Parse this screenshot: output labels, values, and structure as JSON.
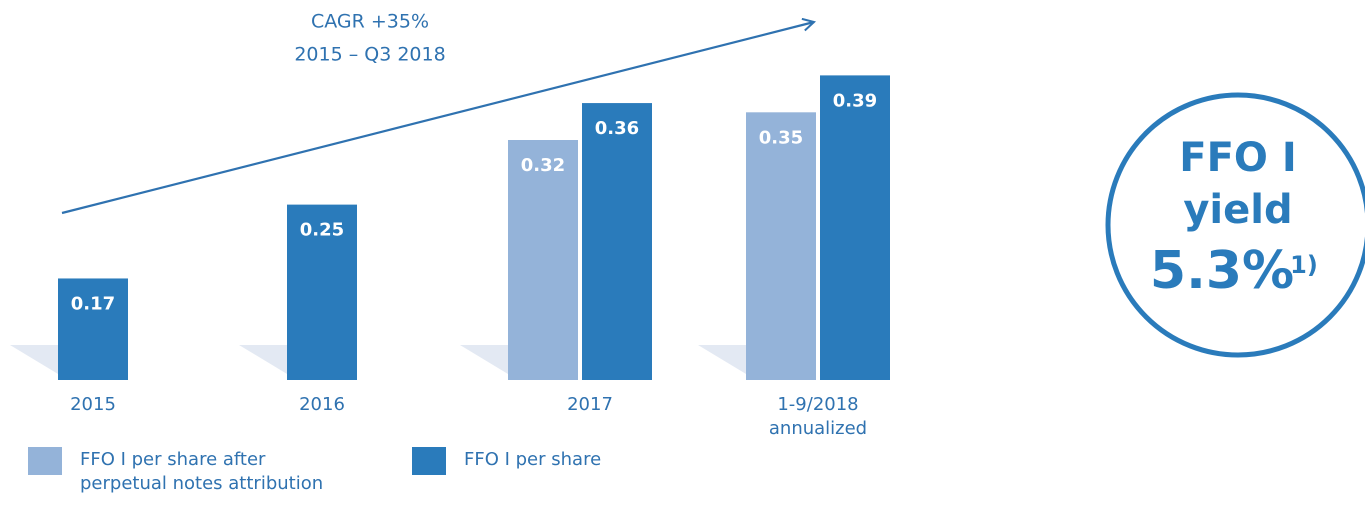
{
  "chart_data": {
    "type": "bar",
    "annotation": [
      "CAGR +35%",
      "2015 – Q3 2018"
    ],
    "categories": [
      "2015",
      "2016",
      "2017",
      "1-9/2018 annualized"
    ],
    "series": [
      {
        "name": "FFO I per share after perpetual notes attribution",
        "color": "#94b3d9",
        "values": [
          null,
          null,
          0.32,
          0.35
        ]
      },
      {
        "name": "FFO I per share",
        "color": "#2a7bbb",
        "values": [
          0.17,
          0.25,
          0.36,
          0.39
        ]
      }
    ],
    "ylim": [
      0.06,
      0.45
    ],
    "legend": "bottom-left"
  },
  "callout": {
    "line1": "FFO I",
    "line2": "yield",
    "value": "5.3%",
    "note": "1)"
  }
}
